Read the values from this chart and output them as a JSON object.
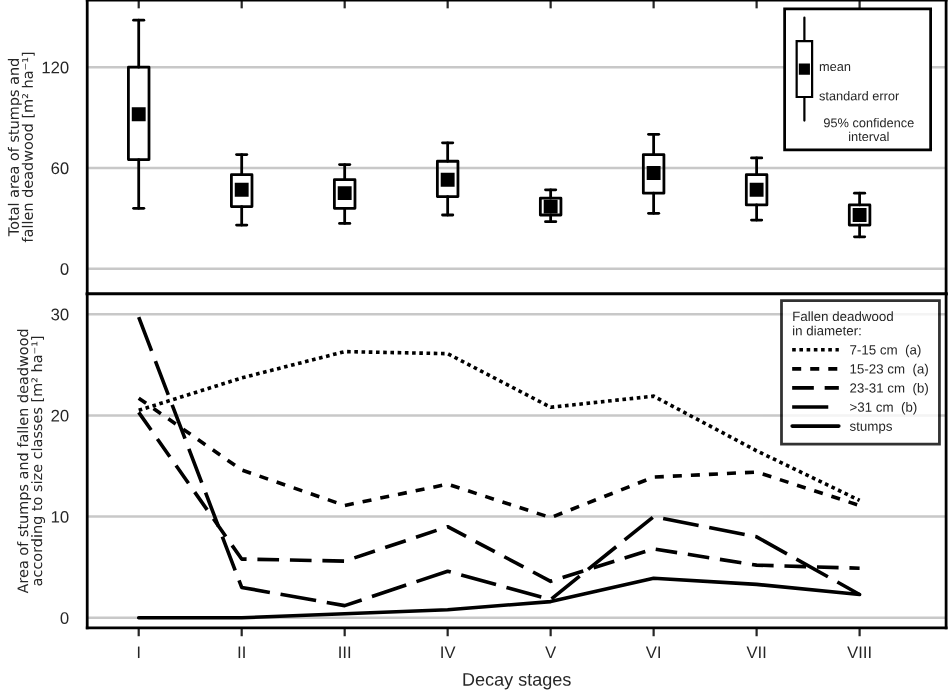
{
  "chart_data": [
    {
      "type": "box",
      "categories": [
        null,
        null,
        null,
        null,
        null,
        null,
        null,
        null
      ],
      "tick_labels": "y",
      "ylabel": "Total area of stumps and\nfallen deadwood [m² ha⁻¹]",
      "ylim": [
        -15,
        160
      ],
      "yticks": [
        0,
        60,
        120
      ],
      "grid": "y",
      "color": "#000000",
      "boxes": [
        {
          "low": 36,
          "q1": 65,
          "mean": 92,
          "q3": 120,
          "high": 148
        },
        {
          "low": 26,
          "q1": 37,
          "mean": 47,
          "q3": 56,
          "high": 68
        },
        {
          "low": 27,
          "q1": 36,
          "mean": 45,
          "q3": 53,
          "high": 62
        },
        {
          "low": 32,
          "q1": 43,
          "mean": 53,
          "q3": 64,
          "high": 75
        },
        {
          "low": 28,
          "q1": 32,
          "mean": 37,
          "q3": 42,
          "high": 47
        },
        {
          "low": 33,
          "q1": 45,
          "mean": 57,
          "q3": 68,
          "high": 80
        },
        {
          "low": 29,
          "q1": 38,
          "mean": 47,
          "q3": 56,
          "high": 66
        },
        {
          "low": 19,
          "q1": 26,
          "mean": 32,
          "q3": 38,
          "high": 45
        }
      ],
      "annotations": [
        "mean",
        "standard error",
        "95% confidence\ninterval"
      ]
    },
    {
      "type": "line",
      "categories": [
        "I",
        "II",
        "III",
        "IV",
        "V",
        "VI",
        "VII",
        "VIII"
      ],
      "xlabel": "Decay stages",
      "ylabel": "Area of stumps and fallen deadwood\naccording to size classes [m² ha⁻¹]",
      "ylim": [
        -1,
        32
      ],
      "yticks": [
        0,
        10,
        20,
        30
      ],
      "grid": "y",
      "legend": "top right",
      "legend_title": "Fallen deadwood\nin diameter:",
      "series": [
        {
          "name": "7-15 cm  (a)",
          "color": "#000000",
          "line_style": "dotted",
          "values": [
            20.5,
            23.7,
            26.3,
            26.1,
            20.8,
            21.9,
            16.5,
            11.6
          ]
        },
        {
          "name": "15-23 cm  (a)",
          "color": "#000000",
          "line_style": "dashed",
          "values": [
            21.7,
            14.6,
            11.1,
            13.2,
            9.9,
            13.9,
            14.4,
            11.1
          ]
        },
        {
          "name": "23-31 cm  (b)",
          "color": "#000000",
          "line_style": "dashed",
          "values": [
            20.3,
            5.8,
            5.6,
            9.0,
            3.6,
            6.8,
            5.2,
            4.9
          ]
        },
        {
          "name": ">31 cm  (b)",
          "color": "#000000",
          "line_style": "dashed",
          "values": [
            29.7,
            3.0,
            1.2,
            4.6,
            1.8,
            10.0,
            8.0,
            2.3
          ]
        },
        {
          "name": "stumps",
          "color": "#000000",
          "line_style": "solid",
          "values": [
            0,
            0,
            0.4,
            0.8,
            1.6,
            3.9,
            3.3,
            2.3
          ]
        }
      ]
    }
  ]
}
